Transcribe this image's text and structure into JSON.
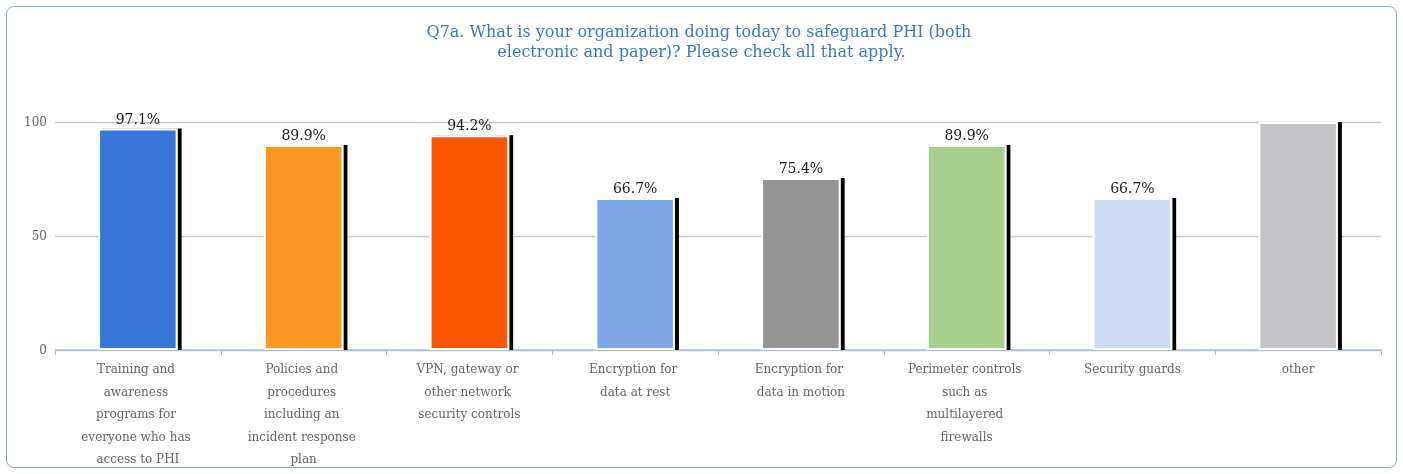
{
  "chart_data": {
    "type": "bar",
    "title": "Q7a. What is your organization doing today to safeguard PHI (both electronic and paper)? Please check all that apply.",
    "categories": [
      "Training and awareness programs for everyone who has access to PHI",
      "Policies and procedures including an incident response plan",
      "VPN, gateway or other network security controls",
      "Encryption for data at rest",
      "Encryption for data in motion",
      "Perimeter controls such as multilayered firewalls",
      "Security guards",
      "other"
    ],
    "values": [
      97.1,
      89.9,
      94.2,
      66.7,
      75.4,
      89.9,
      66.7,
      100
    ],
    "value_labels": [
      "97.1%",
      "89.9%",
      "94.2%",
      "66.7%",
      "75.4%",
      "89.9%",
      "66.7%",
      null
    ],
    "colors": [
      "#3775d9",
      "#fb9722",
      "#fd5806",
      "#7ea6e8",
      "#959595",
      "#a6cf8d",
      "#ccdcf4",
      "#c3c3c5"
    ],
    "ylim": [
      0,
      100
    ],
    "yticks": [
      0,
      50,
      100
    ],
    "grid": "y"
  }
}
